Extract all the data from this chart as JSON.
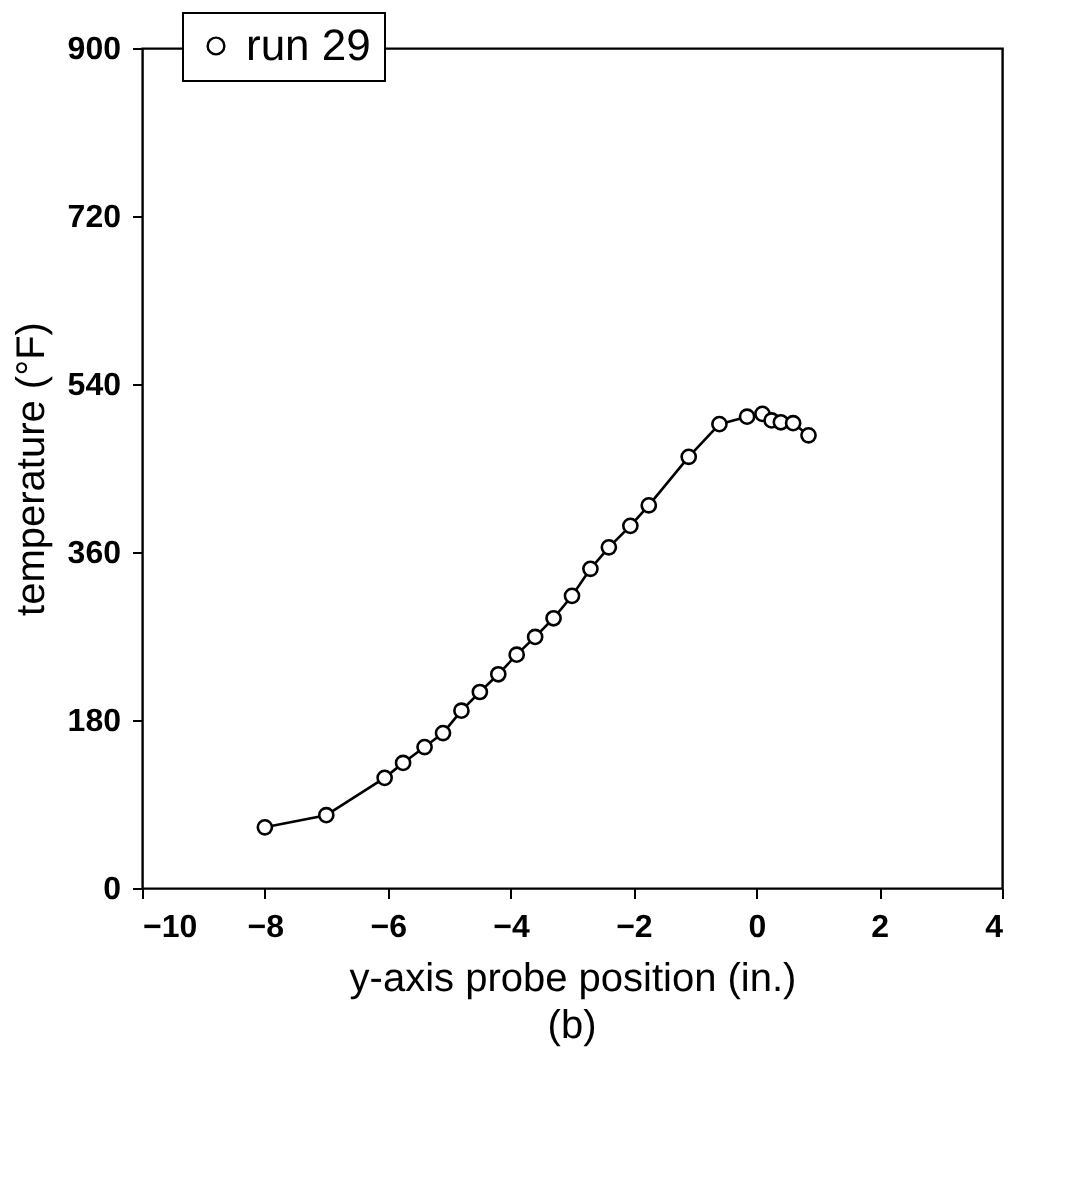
{
  "chart_data": {
    "type": "line",
    "xlabel": "y-axis probe position (in.)",
    "ylabel": "temperature (°F)",
    "annotations": [
      "(b)"
    ],
    "x": [
      -8.0,
      -7.0,
      -6.05,
      -5.75,
      -5.4,
      -5.1,
      -4.8,
      -4.5,
      -4.2,
      -3.9,
      -3.6,
      -3.3,
      -3.0,
      -2.7,
      -2.4,
      -2.05,
      -1.75,
      -1.1,
      -0.6,
      -0.15,
      0.1,
      0.25,
      0.4,
      0.6,
      0.85
    ],
    "series": [
      {
        "name": "run 29",
        "color": "#000000",
        "values": [
          65,
          78,
          118,
          134,
          151,
          166,
          190,
          210,
          229,
          250,
          269,
          289,
          313,
          342,
          365,
          388,
          410,
          462,
          497,
          505,
          508,
          501,
          499,
          498,
          485
        ]
      }
    ],
    "xlim": [
      -10,
      4
    ],
    "xticks": [
      -10,
      -8,
      -6,
      -4,
      -2,
      0,
      2,
      4
    ],
    "ylim": [
      0,
      900
    ],
    "yticks": [
      0,
      180,
      360,
      540,
      720,
      900
    ],
    "grid": false,
    "legend": "top left",
    "marker": "circle",
    "line_style": "solid"
  }
}
